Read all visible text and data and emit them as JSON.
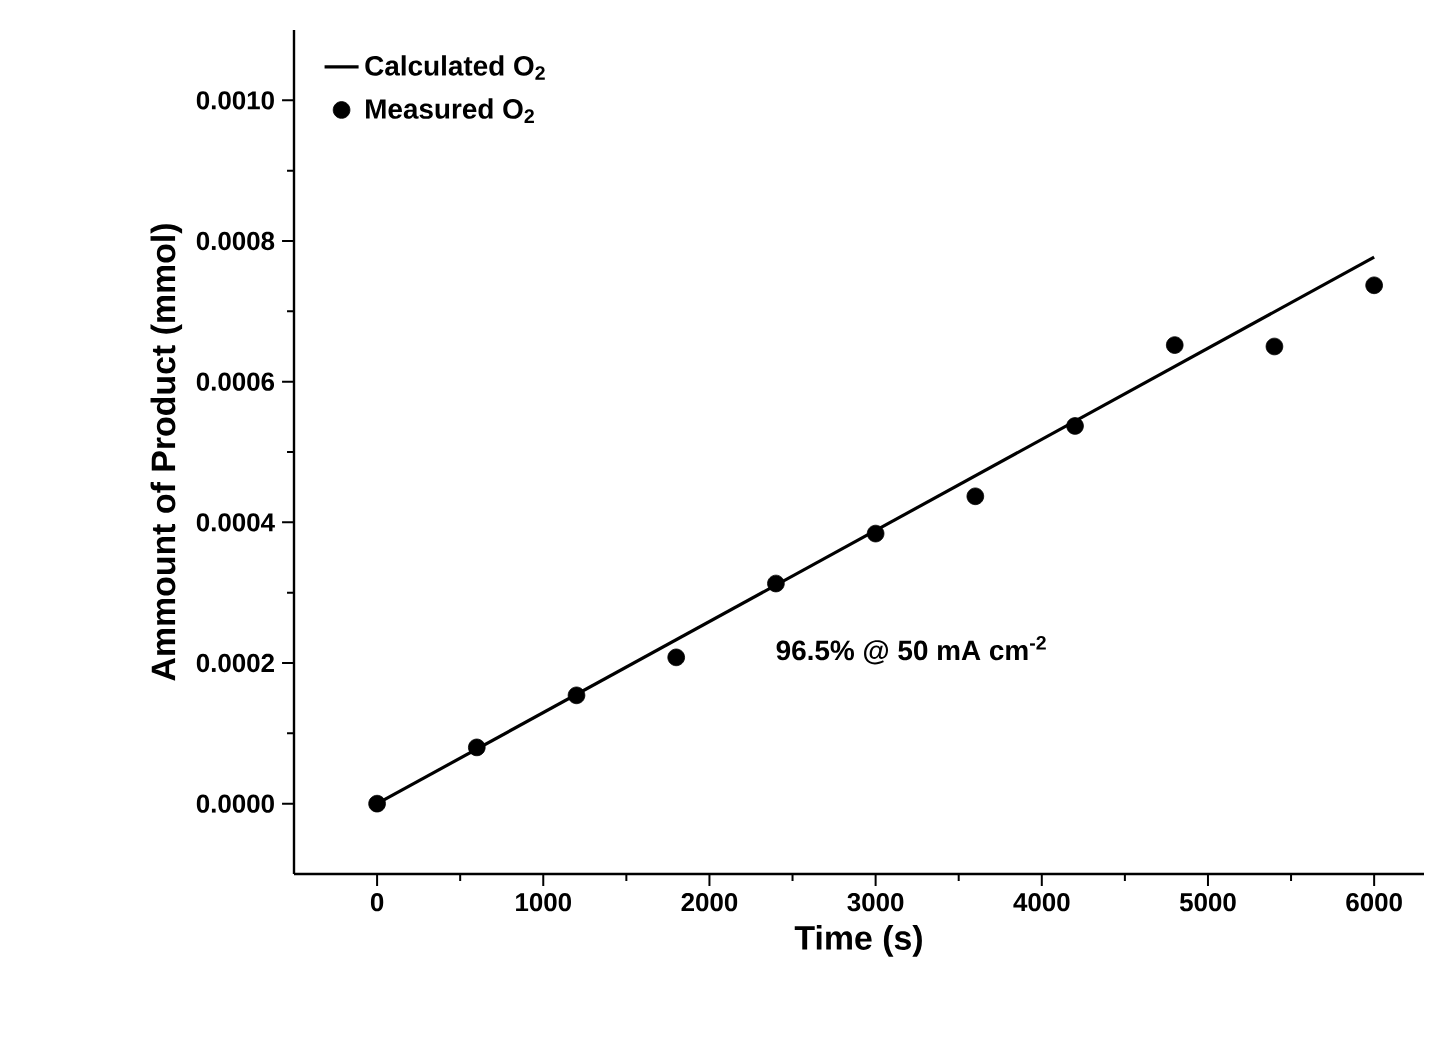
{
  "chart_data": {
    "type": "scatter",
    "xlabel": "Time (s)",
    "ylabel": "Ammount of Product (mmol)",
    "xlim": [
      -500,
      6300
    ],
    "ylim": [
      -0.0001,
      0.0011
    ],
    "xticks": [
      0,
      1000,
      2000,
      3000,
      4000,
      5000,
      6000
    ],
    "yticks": [
      {
        "value": 0,
        "label": "0.0000"
      },
      {
        "value": 0.0002,
        "label": "0.0002"
      },
      {
        "value": 0.0004,
        "label": "0.0004"
      },
      {
        "value": 0.0006,
        "label": "0.0006"
      },
      {
        "value": 0.0008,
        "label": "0.0008"
      },
      {
        "value": 0.001,
        "label": "0.0010"
      }
    ],
    "legend": "top left",
    "annotations": [
      "96.5% @ 50 mA cm$^{-2}$"
    ],
    "series": [
      {
        "name": "Calculated   O$_{2}$",
        "type": "line",
        "marker": "none",
        "line_style": "solid",
        "color": "#000000",
        "x": [
          0,
          6000
        ],
        "values": [
          0,
          0.000777
        ]
      },
      {
        "name": "Measured    O$_{2}$",
        "marker": "circle",
        "color": "#000000",
        "x": [
          0,
          600,
          1200,
          1800,
          2400,
          3000,
          3600,
          4200,
          4800,
          5400,
          6000
        ],
        "values": [
          0,
          8e-05,
          0.000154,
          0.000208,
          0.000313,
          0.000384,
          0.000437,
          0.000537,
          0.000652,
          0.00065,
          0.000737
        ]
      }
    ]
  }
}
